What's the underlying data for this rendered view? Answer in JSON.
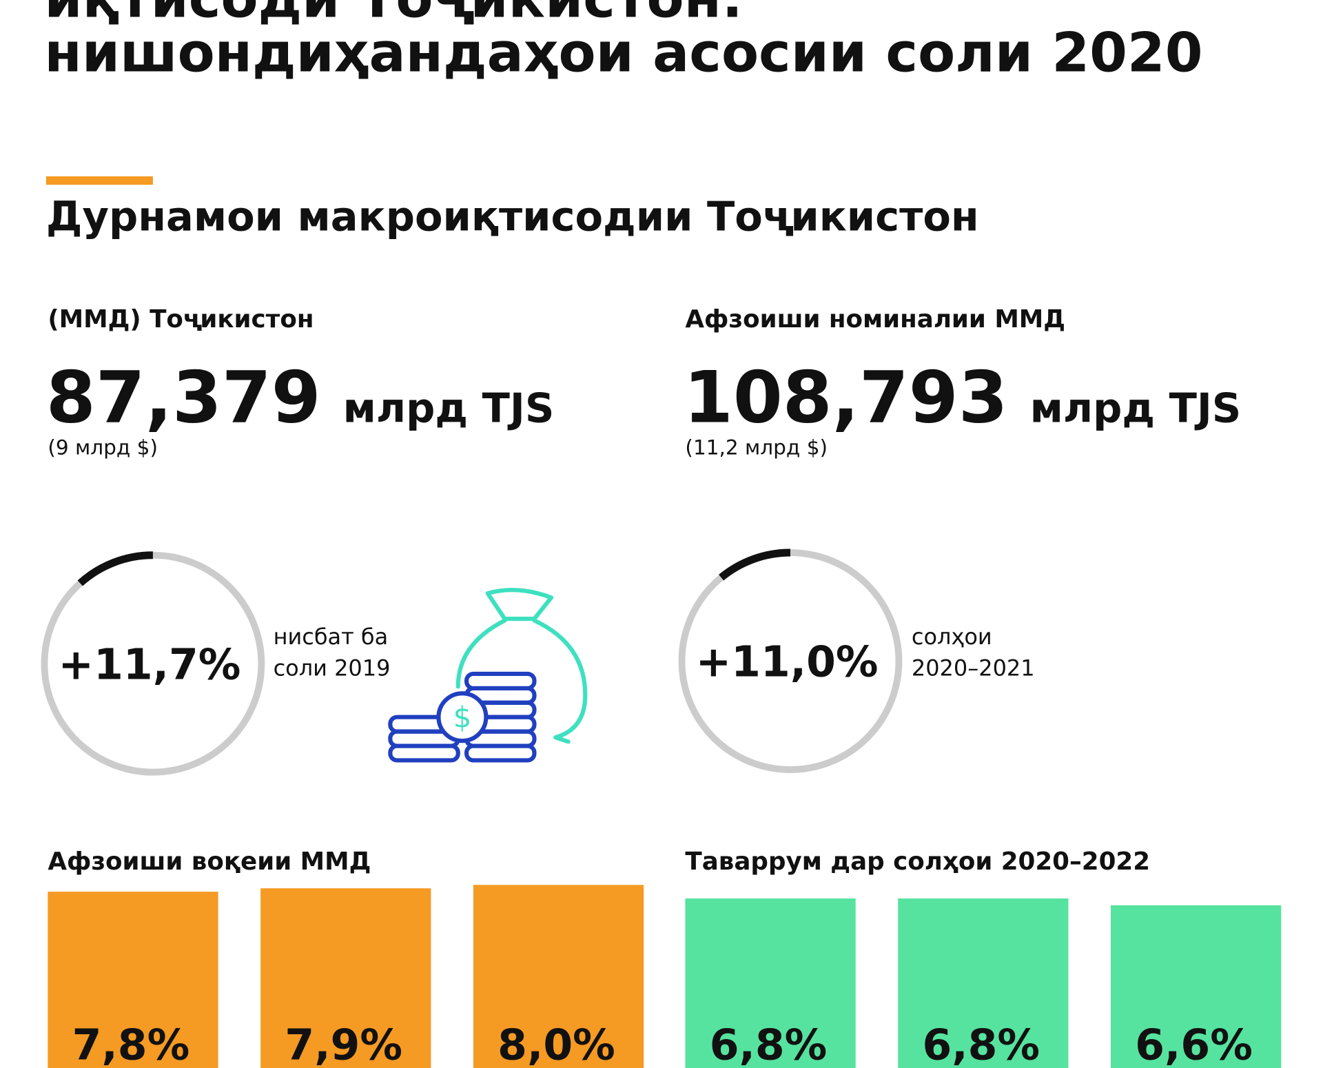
{
  "header": {
    "title_lines": [
      "иқтисоди Тоҷикистон:",
      "нишондиҳандаҳои асосии соли 2020"
    ],
    "section_title": "Дурнамои макроиқтисодии Тоҷикистон"
  },
  "stats": [
    {
      "label": "(ММД) Тоҷикистон",
      "value": "87,379",
      "unit": "млрд TJS",
      "sub": "(9 млрд $)"
    },
    {
      "label": "Афзоиши номиналии ММД",
      "value": "108,793",
      "unit": "млрд TJS",
      "sub": "(11,2 млрд $)"
    }
  ],
  "rings": [
    {
      "value": 11.7,
      "value_label": "+11,7%",
      "caption": [
        "нисбат ба",
        "соли 2019"
      ]
    },
    {
      "value": 11.0,
      "value_label": "+11,0%",
      "caption": [
        "солҳои",
        "2020–2021"
      ]
    }
  ],
  "bar_groups": [
    {
      "title": "Афзоиши воқеии ММД",
      "color": "#f59a23",
      "values": [
        7.8,
        7.9,
        8.0
      ],
      "value_labels": [
        "7,8%",
        "7,9%",
        "8,0%"
      ]
    },
    {
      "title": "Таваррум дар солҳои 2020–2022",
      "color": "#56e39f",
      "values": [
        6.8,
        6.8,
        6.6
      ],
      "value_labels": [
        "6,8%",
        "6,8%",
        "6,6%"
      ]
    }
  ]
}
